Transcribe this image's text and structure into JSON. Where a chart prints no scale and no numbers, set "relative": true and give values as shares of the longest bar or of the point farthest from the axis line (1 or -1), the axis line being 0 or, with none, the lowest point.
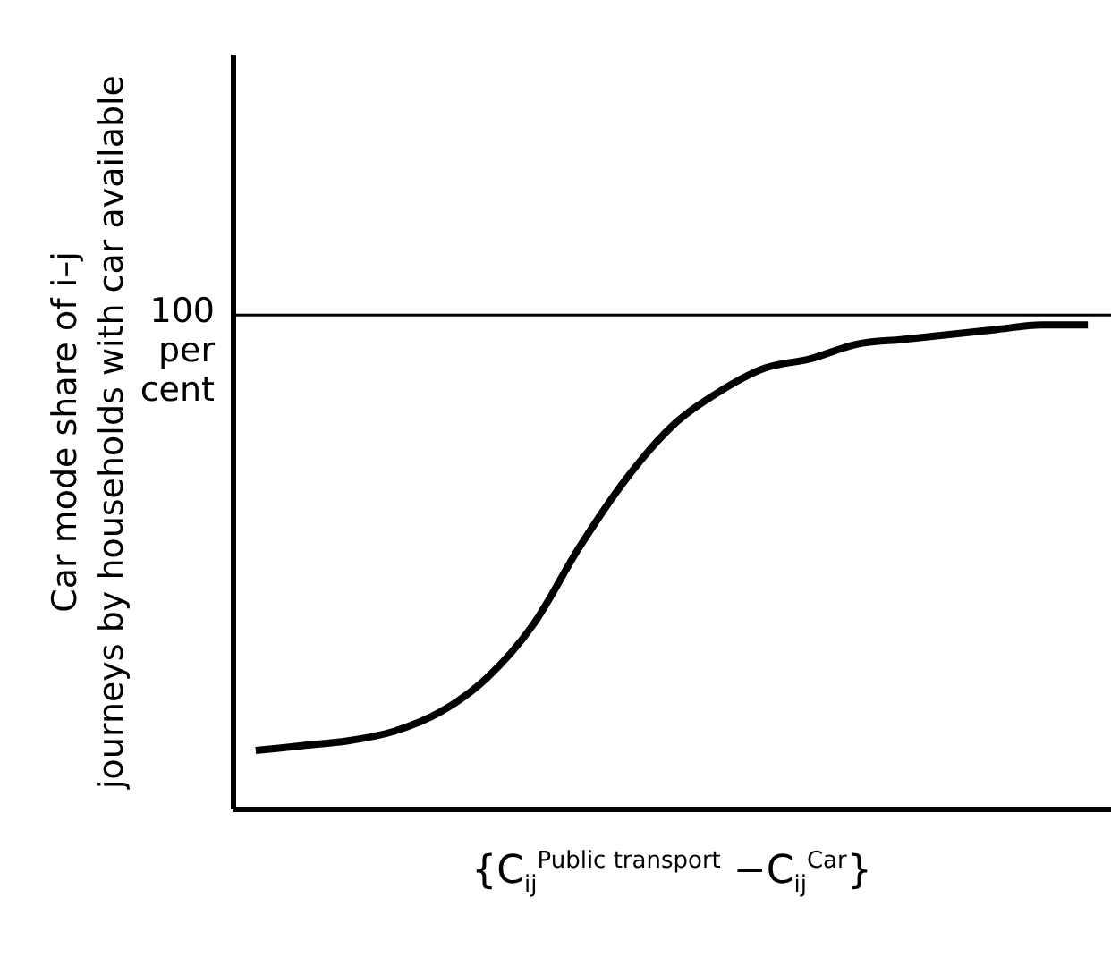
{
  "chart_data": {
    "type": "line",
    "relative": true,
    "xlabel": "{C$_{ij}$$^{Public transport}$ −C$_{ij}$$^{Car}$}",
    "ylabel": "Car mode share of i–j\njourneys by households with car available",
    "categories": [
      null,
      null,
      null,
      null,
      null,
      null,
      null,
      null,
      null,
      null,
      null,
      null,
      null,
      null,
      null,
      null,
      null,
      null,
      null
    ],
    "series": [
      {
        "color": "#000000",
        "values": [
          0.12,
          0.13,
          0.14,
          0.16,
          0.2,
          0.27,
          0.38,
          0.54,
          0.68,
          0.79,
          0.86,
          0.91,
          0.93,
          0.96,
          0.97,
          0.98,
          0.99,
          1.0,
          1.0
        ]
      }
    ],
    "ref_lines": [
      {
        "axis": "y",
        "value": 1.02,
        "label": "100\nper\ncent",
        "color": "#000000"
      }
    ],
    "grid": false,
    "marker": "none",
    "line_style": "solid"
  }
}
